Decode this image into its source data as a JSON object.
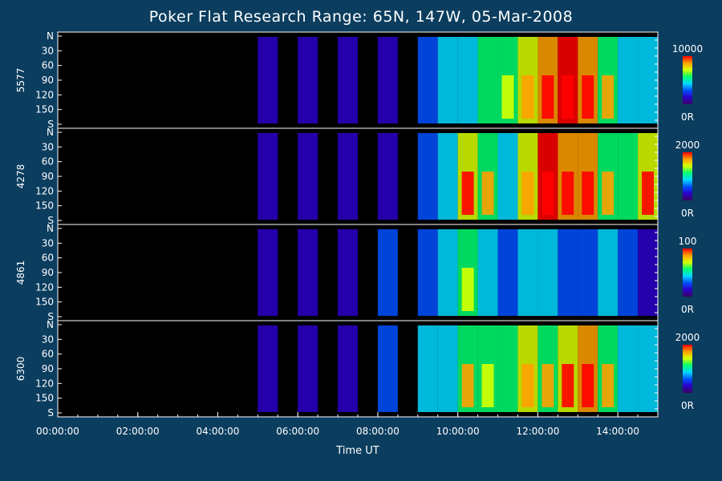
{
  "title": "Poker Flat Research Range: 65N, 147W, 05-Mar-2008",
  "chart_data": {
    "type": "heatmap",
    "title": "Poker Flat Research Range: 65N, 147W, 05-Mar-2008",
    "xlabel": "Time UT",
    "x_ticks": [
      "00:00:00",
      "02:00:00",
      "04:00:00",
      "06:00:00",
      "08:00:00",
      "10:00:00",
      "12:00:00",
      "14:00:00"
    ],
    "x_range_hours": [
      0,
      15
    ],
    "y_range_deg": [
      0,
      180
    ],
    "y_tick_labels": [
      "N",
      "30",
      "60",
      "90",
      "120",
      "150",
      "S"
    ],
    "colormap": [
      "#3a0060",
      "#2a00c8",
      "#0050ff",
      "#00d8ff",
      "#00ff70",
      "#d8ff00",
      "#ffa000",
      "#ff0000"
    ],
    "panels": [
      {
        "name": "5577",
        "cbar_max": "10000",
        "cbar_min": "0R",
        "bands": [
          {
            "t": 5.0,
            "v": 0.08
          },
          {
            "t": 6.0,
            "v": 0.12
          },
          {
            "t": 7.0,
            "v": 0.15
          },
          {
            "t": 8.0,
            "v": 0.2
          },
          {
            "t": 9.0,
            "v": 0.3
          },
          {
            "t": 9.5,
            "v": 0.4
          },
          {
            "t": 10.0,
            "v": 0.45
          },
          {
            "t": 10.5,
            "v": 0.5
          },
          {
            "t": 11.0,
            "v": 0.55
          },
          {
            "t": 11.5,
            "v": 0.7
          },
          {
            "t": 12.0,
            "v": 0.85
          },
          {
            "t": 12.5,
            "v": 0.95
          },
          {
            "t": 13.0,
            "v": 0.8
          },
          {
            "t": 13.5,
            "v": 0.6
          },
          {
            "t": 14.0,
            "v": 0.4
          },
          {
            "t": 14.5,
            "v": 0.45
          }
        ]
      },
      {
        "name": "4278",
        "cbar_max": "2000",
        "cbar_min": "0R",
        "bands": [
          {
            "t": 5.0,
            "v": 0.08
          },
          {
            "t": 6.0,
            "v": 0.1
          },
          {
            "t": 7.0,
            "v": 0.12
          },
          {
            "t": 8.0,
            "v": 0.2
          },
          {
            "t": 9.0,
            "v": 0.3
          },
          {
            "t": 9.5,
            "v": 0.45
          },
          {
            "t": 10.0,
            "v": 0.75
          },
          {
            "t": 10.5,
            "v": 0.6
          },
          {
            "t": 11.0,
            "v": 0.45
          },
          {
            "t": 11.5,
            "v": 0.7
          },
          {
            "t": 12.0,
            "v": 0.95
          },
          {
            "t": 12.5,
            "v": 0.85
          },
          {
            "t": 13.0,
            "v": 0.85
          },
          {
            "t": 13.5,
            "v": 0.6
          },
          {
            "t": 14.0,
            "v": 0.5
          },
          {
            "t": 14.5,
            "v": 0.75
          }
        ]
      },
      {
        "name": "4861",
        "cbar_max": "100",
        "cbar_min": "0R",
        "bands": [
          {
            "t": 5.0,
            "v": 0.1
          },
          {
            "t": 6.0,
            "v": 0.15
          },
          {
            "t": 7.0,
            "v": 0.2
          },
          {
            "t": 8.0,
            "v": 0.3
          },
          {
            "t": 9.0,
            "v": 0.35
          },
          {
            "t": 9.5,
            "v": 0.4
          },
          {
            "t": 10.0,
            "v": 0.55
          },
          {
            "t": 10.5,
            "v": 0.4
          },
          {
            "t": 11.0,
            "v": 0.35
          },
          {
            "t": 11.5,
            "v": 0.45
          },
          {
            "t": 12.0,
            "v": 0.4
          },
          {
            "t": 12.5,
            "v": 0.3
          },
          {
            "t": 13.0,
            "v": 0.3
          },
          {
            "t": 13.5,
            "v": 0.4
          },
          {
            "t": 14.0,
            "v": 0.3
          },
          {
            "t": 14.5,
            "v": 0.2
          }
        ]
      },
      {
        "name": "6300",
        "cbar_max": "2000",
        "cbar_min": "0R",
        "bands": [
          {
            "t": 5.0,
            "v": 0.12
          },
          {
            "t": 6.0,
            "v": 0.15
          },
          {
            "t": 7.0,
            "v": 0.18
          },
          {
            "t": 8.0,
            "v": 0.35
          },
          {
            "t": 9.0,
            "v": 0.4
          },
          {
            "t": 9.5,
            "v": 0.45
          },
          {
            "t": 10.0,
            "v": 0.6
          },
          {
            "t": 10.5,
            "v": 0.55
          },
          {
            "t": 11.0,
            "v": 0.5
          },
          {
            "t": 11.5,
            "v": 0.7
          },
          {
            "t": 12.0,
            "v": 0.6
          },
          {
            "t": 12.5,
            "v": 0.75
          },
          {
            "t": 13.0,
            "v": 0.85
          },
          {
            "t": 13.5,
            "v": 0.6
          },
          {
            "t": 14.0,
            "v": 0.4
          },
          {
            "t": 14.5,
            "v": 0.4
          }
        ]
      }
    ]
  }
}
